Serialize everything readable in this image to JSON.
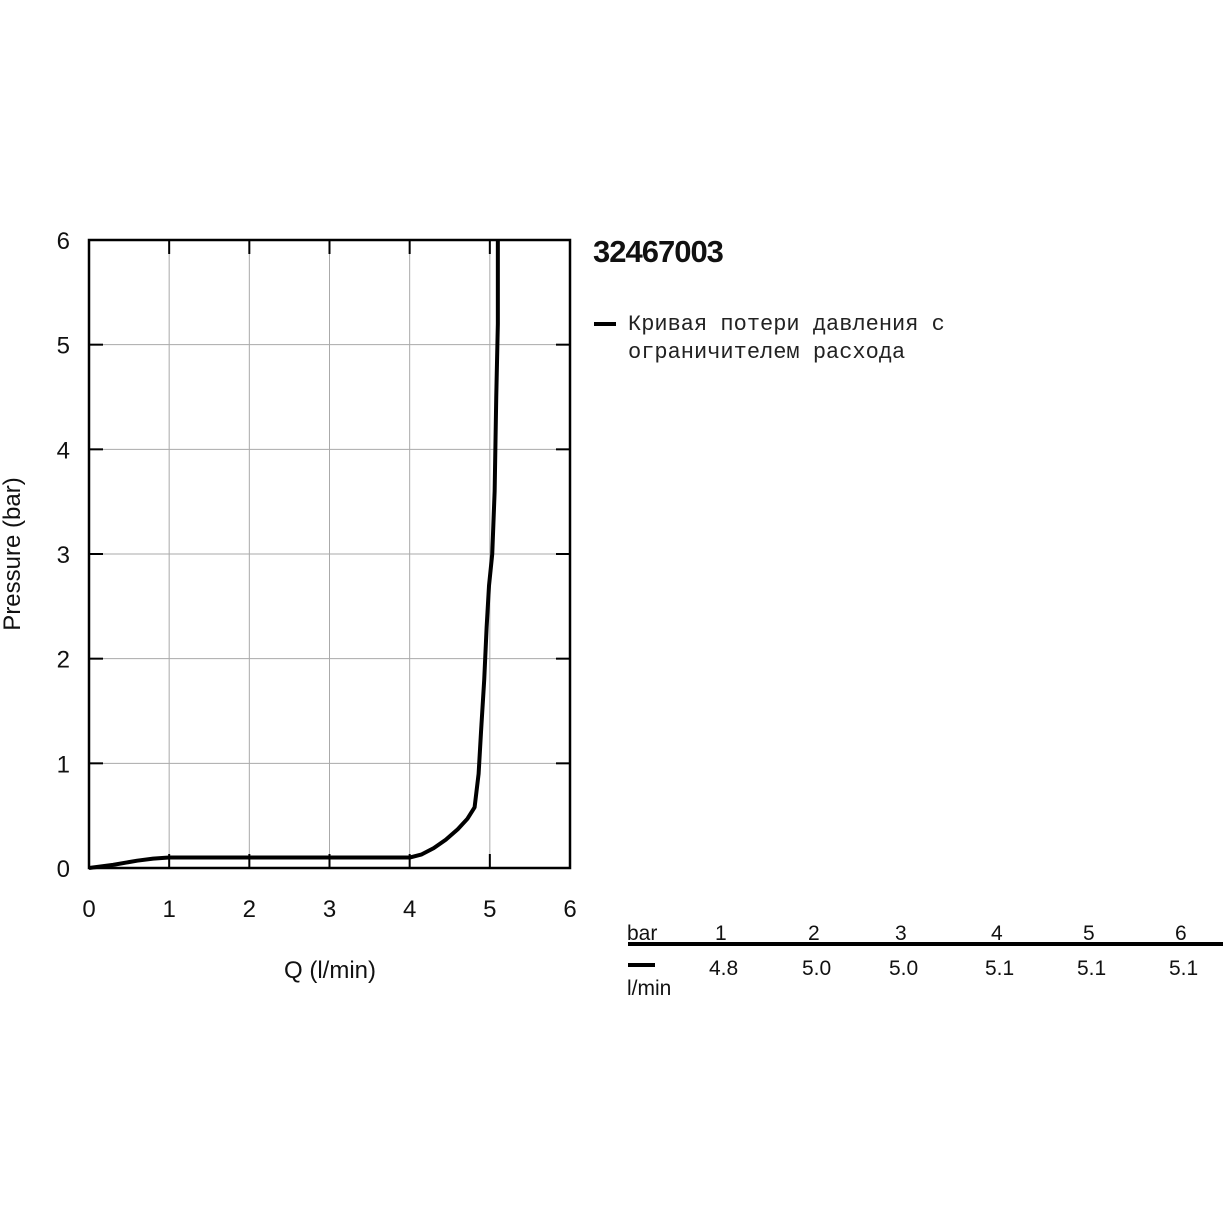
{
  "chart_data": {
    "type": "line",
    "title": "32467003",
    "xlabel": "Q (l/min)",
    "ylabel": "Pressure (bar)",
    "xlim": [
      0,
      6
    ],
    "ylim": [
      0,
      6
    ],
    "xticks": [
      0,
      1,
      2,
      3,
      4,
      5,
      6
    ],
    "yticks": [
      0,
      1,
      2,
      3,
      4,
      5,
      6
    ],
    "grid": true,
    "series": [
      {
        "name": "Кривая потери давления с ограничителем расхода",
        "color": "#000000",
        "x": [
          0,
          0.3,
          0.6,
          0.8,
          1,
          2,
          3,
          4,
          4.15,
          4.3,
          4.45,
          4.6,
          4.72,
          4.81,
          4.86,
          4.89,
          4.93,
          4.96,
          4.99,
          5.03,
          5.06,
          5.08,
          5.1,
          5.1
        ],
        "y": [
          0,
          0.03,
          0.07,
          0.09,
          0.1,
          0.1,
          0.1,
          0.1,
          0.13,
          0.19,
          0.27,
          0.37,
          0.47,
          0.58,
          0.9,
          1.3,
          1.8,
          2.3,
          2.7,
          3.0,
          3.6,
          4.5,
          5.2,
          6
        ]
      }
    ]
  },
  "table": {
    "header_label": "bar",
    "columns": [
      1,
      2,
      3,
      4,
      5,
      6
    ],
    "unit": "l/min",
    "values": [
      "4.8",
      "5.0",
      "5.0",
      "5.1",
      "5.1",
      "5.1"
    ]
  }
}
